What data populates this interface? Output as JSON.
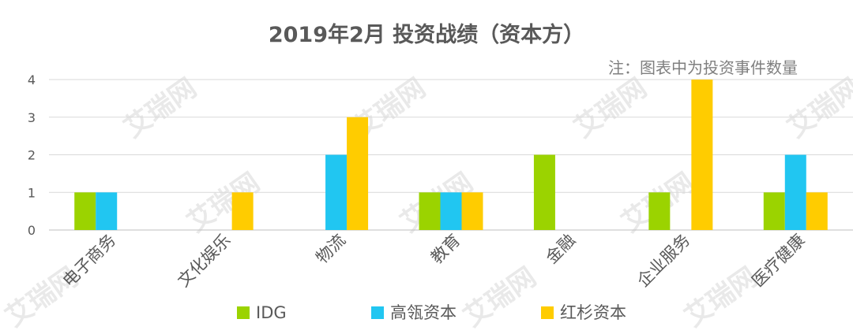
{
  "watermark": "艾瑞网",
  "note": "注：图表中为投资事件数量",
  "colors": {
    "grid": "#d9d9d9",
    "axis": "#bfbfbf",
    "tick": "#595959",
    "title": "#595959"
  },
  "chart_data": {
    "type": "bar",
    "title": "2019年2月 投资战绩（资本方）",
    "xlabel": "",
    "ylabel": "",
    "ylim": [
      0,
      4
    ],
    "yticks": [
      0,
      1,
      2,
      3,
      4
    ],
    "grid": true,
    "legend_position": "bottom",
    "categories": [
      "电子商务",
      "文化娱乐",
      "物流",
      "教育",
      "金融",
      "企业服务",
      "医疗健康"
    ],
    "series": [
      {
        "name": "IDG",
        "color": "#9bd300",
        "values": [
          1,
          0,
          0,
          1,
          2,
          1,
          1
        ]
      },
      {
        "name": "高瓴资本",
        "color": "#21c6f1",
        "values": [
          1,
          0,
          2,
          1,
          0,
          0,
          2
        ]
      },
      {
        "name": "红杉资本",
        "color": "#ffcc00",
        "values": [
          0,
          1,
          3,
          1,
          0,
          4,
          1
        ]
      }
    ]
  }
}
